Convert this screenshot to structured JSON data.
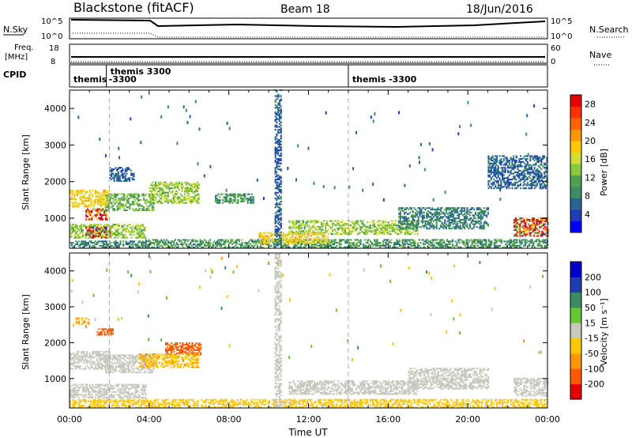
{
  "header": {
    "station": "Blackstone (fitACF)",
    "beam": "Beam 18",
    "date": "18/Jun/2016"
  },
  "labels": {
    "nsky": "N.Sky",
    "freq_line1": "Freq.",
    "freq_line2": "[MHz]",
    "cpid": "CPID",
    "nsearch": "N.Search",
    "nave": "Nave",
    "nsky_ticks": [
      "10^5",
      "10^0"
    ],
    "nsearch_ticks": [
      "10^5",
      "10^0"
    ],
    "freq_ticks": [
      "18",
      "8"
    ],
    "nave_ticks": [
      "60",
      "0"
    ]
  },
  "cpid_segments": [
    {
      "label_line1": "themis",
      "label_line2": "",
      "start_hour": 0
    },
    {
      "label_line1": "themis 3300",
      "label_line2": "-3300",
      "start_hour": 1.85
    },
    {
      "label_line1": "themis -3300",
      "label_line2": "",
      "start_hour": 14.0
    }
  ],
  "colors": {
    "power_scale": [
      "#0000ff",
      "#1e3cb4",
      "#2a6496",
      "#3c8c64",
      "#50a050",
      "#8cc83c",
      "#d2dc32",
      "#ffc800",
      "#ff9600",
      "#ff6400",
      "#ff3200",
      "#e60000"
    ],
    "velocity_scale": [
      "#e60000",
      "#ff4000",
      "#ff8000",
      "#ffb400",
      "#ffd232",
      "#c8c8be",
      "#c8c8be",
      "#64c832",
      "#3ca064",
      "#2a6496",
      "#1e3cb4"
    ],
    "grey": "#c8c8be",
    "marker": "#aaaaaa"
  },
  "chart_data": [
    {
      "type": "heatmap",
      "title": "",
      "xlabel": "Time UT",
      "ylabel": "Slant Range [km]",
      "xlim": [
        0,
        24
      ],
      "ylim": [
        180,
        4500
      ],
      "xticks": [
        "00:00",
        "04:00",
        "08:00",
        "12:00",
        "16:00",
        "20:00",
        "00:00"
      ],
      "yticks": [
        1000,
        2000,
        3000,
        4000
      ],
      "colorbar": {
        "label": "Power [dB]",
        "ticks": [
          4,
          8,
          12,
          16,
          20,
          24,
          28
        ],
        "range": [
          0,
          30
        ]
      },
      "regions": [
        {
          "t": [
            0.0,
            2.0
          ],
          "r": [
            1300,
            1750
          ],
          "v": 18
        },
        {
          "t": [
            0.8,
            1.9
          ],
          "r": [
            950,
            1250
          ],
          "v": 27
        },
        {
          "t": [
            0.0,
            3.8
          ],
          "r": [
            450,
            850
          ],
          "v": 14
        },
        {
          "t": [
            0.8,
            2.0
          ],
          "r": [
            450,
            750
          ],
          "v": 22
        },
        {
          "t": [
            0.0,
            3.8
          ],
          "r": [
            190,
            380
          ],
          "v": 8
        },
        {
          "t": [
            1.8,
            4.2
          ],
          "r": [
            1200,
            1650
          ],
          "v": 12
        },
        {
          "t": [
            4.0,
            6.5
          ],
          "r": [
            1400,
            2000
          ],
          "v": 14
        },
        {
          "t": [
            2.0,
            3.2
          ],
          "r": [
            2000,
            2400
          ],
          "v": 6
        },
        {
          "t": [
            7.3,
            9.2
          ],
          "r": [
            1400,
            1650
          ],
          "v": 10
        },
        {
          "t": [
            3.8,
            24.0
          ],
          "r": [
            190,
            400
          ],
          "v": 10
        },
        {
          "t": [
            11.0,
            17.5
          ],
          "r": [
            550,
            950
          ],
          "v": 14
        },
        {
          "t": [
            9.5,
            13.0
          ],
          "r": [
            300,
            600
          ],
          "v": 18
        },
        {
          "t": [
            16.5,
            21.0
          ],
          "r": [
            700,
            1300
          ],
          "v": 8
        },
        {
          "t": [
            22.3,
            24.0
          ],
          "r": [
            500,
            1000
          ],
          "v": 24
        },
        {
          "t": [
            10.3,
            10.6
          ],
          "r": [
            200,
            4500
          ],
          "v": 6
        },
        {
          "t": [
            21.0,
            24.0
          ],
          "r": [
            1800,
            2700
          ],
          "v": 6
        }
      ]
    },
    {
      "type": "heatmap",
      "title": "",
      "xlabel": "Time UT",
      "ylabel": "Slant Range [km]",
      "xlim": [
        0,
        24
      ],
      "ylim": [
        180,
        4500
      ],
      "xticks": [
        "00:00",
        "04:00",
        "08:00",
        "12:00",
        "16:00",
        "20:00",
        "00:00"
      ],
      "yticks": [
        1000,
        2000,
        3000,
        4000
      ],
      "colorbar": {
        "label": "Velocity [m s⁻¹]",
        "ticks": [
          "-200",
          "-100",
          "-50",
          "-15",
          "15",
          "50",
          "100",
          "200"
        ]
      },
      "regions": [
        {
          "t": [
            0.0,
            2.0
          ],
          "r": [
            1250,
            1750
          ],
          "v": 0
        },
        {
          "t": [
            0.0,
            3.8
          ],
          "r": [
            450,
            850
          ],
          "v": 0
        },
        {
          "t": [
            1.8,
            4.2
          ],
          "r": [
            1150,
            1650
          ],
          "v": 0
        },
        {
          "t": [
            4.8,
            6.6
          ],
          "r": [
            1650,
            2000
          ],
          "v": -180
        },
        {
          "t": [
            1.3,
            2.2
          ],
          "r": [
            2200,
            2400
          ],
          "v": -120
        },
        {
          "t": [
            0.3,
            1.0
          ],
          "r": [
            2500,
            2700
          ],
          "v": -60
        },
        {
          "t": [
            3.5,
            6.5
          ],
          "r": [
            1300,
            1700
          ],
          "v": -40
        },
        {
          "t": [
            0.0,
            24.0
          ],
          "r": [
            190,
            400
          ],
          "v": -30
        },
        {
          "t": [
            11.0,
            17.5
          ],
          "r": [
            550,
            950
          ],
          "v": 0
        },
        {
          "t": [
            17.0,
            21.0
          ],
          "r": [
            700,
            1300
          ],
          "v": 0
        },
        {
          "t": [
            22.3,
            24.0
          ],
          "r": [
            500,
            1000
          ],
          "v": 0
        },
        {
          "t": [
            10.3,
            10.6
          ],
          "r": [
            200,
            4500
          ],
          "v": 0
        }
      ]
    }
  ]
}
